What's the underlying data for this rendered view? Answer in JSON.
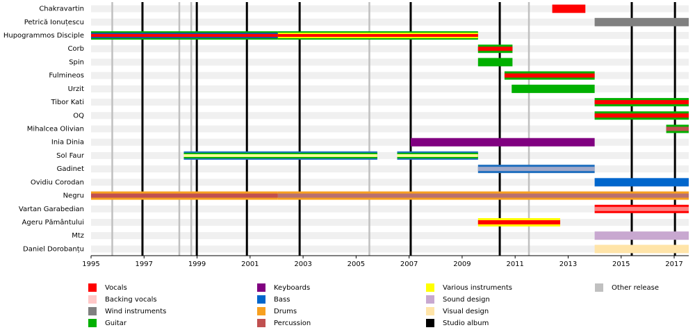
{
  "chart_data": {
    "type": "timeline",
    "xlim": [
      1995,
      2017.55
    ],
    "xticks": [
      1995,
      1997,
      1999,
      2001,
      2003,
      2005,
      2007,
      2009,
      2011,
      2013,
      2015,
      2017
    ],
    "members": [
      {
        "name": "Chakravartin",
        "bars": [
          {
            "start": 2012.4,
            "end": 2013.65,
            "layers": [
              "#ff0000"
            ]
          }
        ]
      },
      {
        "name": "Petrică Ionuțescu",
        "bars": [
          {
            "start": 2014.0,
            "end": 2017.55,
            "layers": [
              "#808080"
            ]
          }
        ]
      },
      {
        "name": "Hupogrammos Disciple",
        "bars": [
          {
            "start": 1995,
            "end": 2002.05,
            "layers": [
              "#00b000",
              "#1f4fa0",
              "#ff0000"
            ]
          },
          {
            "start": 2002.05,
            "end": 2009.6,
            "layers": [
              "#00b000",
              "#ffff00",
              "#ff0000"
            ]
          }
        ]
      },
      {
        "name": "Corb",
        "bars": [
          {
            "start": 2009.6,
            "end": 2010.9,
            "layers": [
              "#00b000",
              "#ff0000"
            ]
          }
        ]
      },
      {
        "name": "Spin",
        "bars": [
          {
            "start": 2009.6,
            "end": 2010.9,
            "layers": [
              "#00b000"
            ]
          }
        ]
      },
      {
        "name": "Fulmineos",
        "bars": [
          {
            "start": 2010.6,
            "end": 2014.0,
            "layers": [
              "#00b000",
              "#ff0000"
            ]
          }
        ]
      },
      {
        "name": "Urzit",
        "bars": [
          {
            "start": 2010.87,
            "end": 2014.0,
            "layers": [
              "#00b000"
            ]
          }
        ]
      },
      {
        "name": "Tibor Kati",
        "bars": [
          {
            "start": 2014.0,
            "end": 2017.55,
            "layers": [
              "#00b000",
              "#ff0000"
            ]
          }
        ]
      },
      {
        "name": "OQ",
        "bars": [
          {
            "start": 2014.0,
            "end": 2017.55,
            "layers": [
              "#00b000",
              "#ff0000"
            ]
          }
        ]
      },
      {
        "name": "Mihalcea Olivian",
        "bars": [
          {
            "start": 2016.7,
            "end": 2017.55,
            "layers": [
              "#00b000",
              "#c05050"
            ]
          }
        ]
      },
      {
        "name": "Inia Dinia",
        "bars": [
          {
            "start": 2007.06,
            "end": 2014.0,
            "layers": [
              "#800080"
            ]
          }
        ]
      },
      {
        "name": "Sol Faur",
        "bars": [
          {
            "start": 1998.5,
            "end": 2005.8,
            "layers": [
              "#1f6fbf",
              "#00b000",
              "#ffff99"
            ]
          },
          {
            "start": 2006.55,
            "end": 2009.6,
            "layers": [
              "#1f6fbf",
              "#00b000",
              "#ffff99"
            ]
          }
        ]
      },
      {
        "name": "Gadinet",
        "bars": [
          {
            "start": 2009.6,
            "end": 2014.0,
            "layers": [
              "#1f6fbf",
              "#a0a8c8"
            ]
          }
        ]
      },
      {
        "name": "Ovidiu Corodan",
        "bars": [
          {
            "start": 2014.0,
            "end": 2017.55,
            "layers": [
              "#0066cc"
            ]
          }
        ]
      },
      {
        "name": "Negru",
        "bars": [
          {
            "start": 1995,
            "end": 2002.05,
            "layers": [
              "#f7a020",
              "#c05050"
            ]
          },
          {
            "start": 2002.05,
            "end": 2017.55,
            "layers": [
              "#f7a020",
              "#b87070"
            ]
          }
        ]
      },
      {
        "name": "Vartan Garabedian",
        "bars": [
          {
            "start": 2014.0,
            "end": 2017.55,
            "layers": [
              "#ff0000",
              "#ff8080"
            ]
          }
        ]
      },
      {
        "name": "Ageru Pământului",
        "bars": [
          {
            "start": 2009.6,
            "end": 2012.7,
            "layers": [
              "#ffff00",
              "#ff0000"
            ]
          }
        ]
      },
      {
        "name": "Mtz",
        "bars": [
          {
            "start": 2014.0,
            "end": 2017.55,
            "layers": [
              "#c8a8d0"
            ]
          }
        ]
      },
      {
        "name": "Daniel Dorobanțu",
        "bars": [
          {
            "start": 2014.0,
            "end": 2017.55,
            "layers": [
              "#ffe4a8"
            ]
          }
        ]
      }
    ],
    "role_legend": [
      {
        "name": "Vocals",
        "color": "#ff0000"
      },
      {
        "name": "Backing vocals",
        "color": "#ffc8c8"
      },
      {
        "name": "Wind instruments",
        "color": "#808080"
      },
      {
        "name": "Guitar",
        "color": "#00b000"
      },
      {
        "name": "Keyboards",
        "color": "#800080"
      },
      {
        "name": "Bass",
        "color": "#0066cc"
      },
      {
        "name": "Drums",
        "color": "#f7a020"
      },
      {
        "name": "Percussion",
        "color": "#c05050"
      },
      {
        "name": "Various instruments",
        "color": "#ffff00"
      },
      {
        "name": "Sound design",
        "color": "#c8a8d0"
      },
      {
        "name": "Visual design",
        "color": "#ffe4a8"
      }
    ],
    "release_series": [
      {
        "name": "Studio album",
        "color": "#000000",
        "x": [
          1996.94,
          1998.99,
          2000.88,
          2002.87,
          2007.06,
          2010.42,
          2015.4,
          2017.03
        ]
      },
      {
        "name": "Other release",
        "color": "#c0c0c0",
        "x": [
          1995.8,
          1998.33,
          1998.78,
          2005.5,
          2011.52
        ]
      }
    ]
  }
}
